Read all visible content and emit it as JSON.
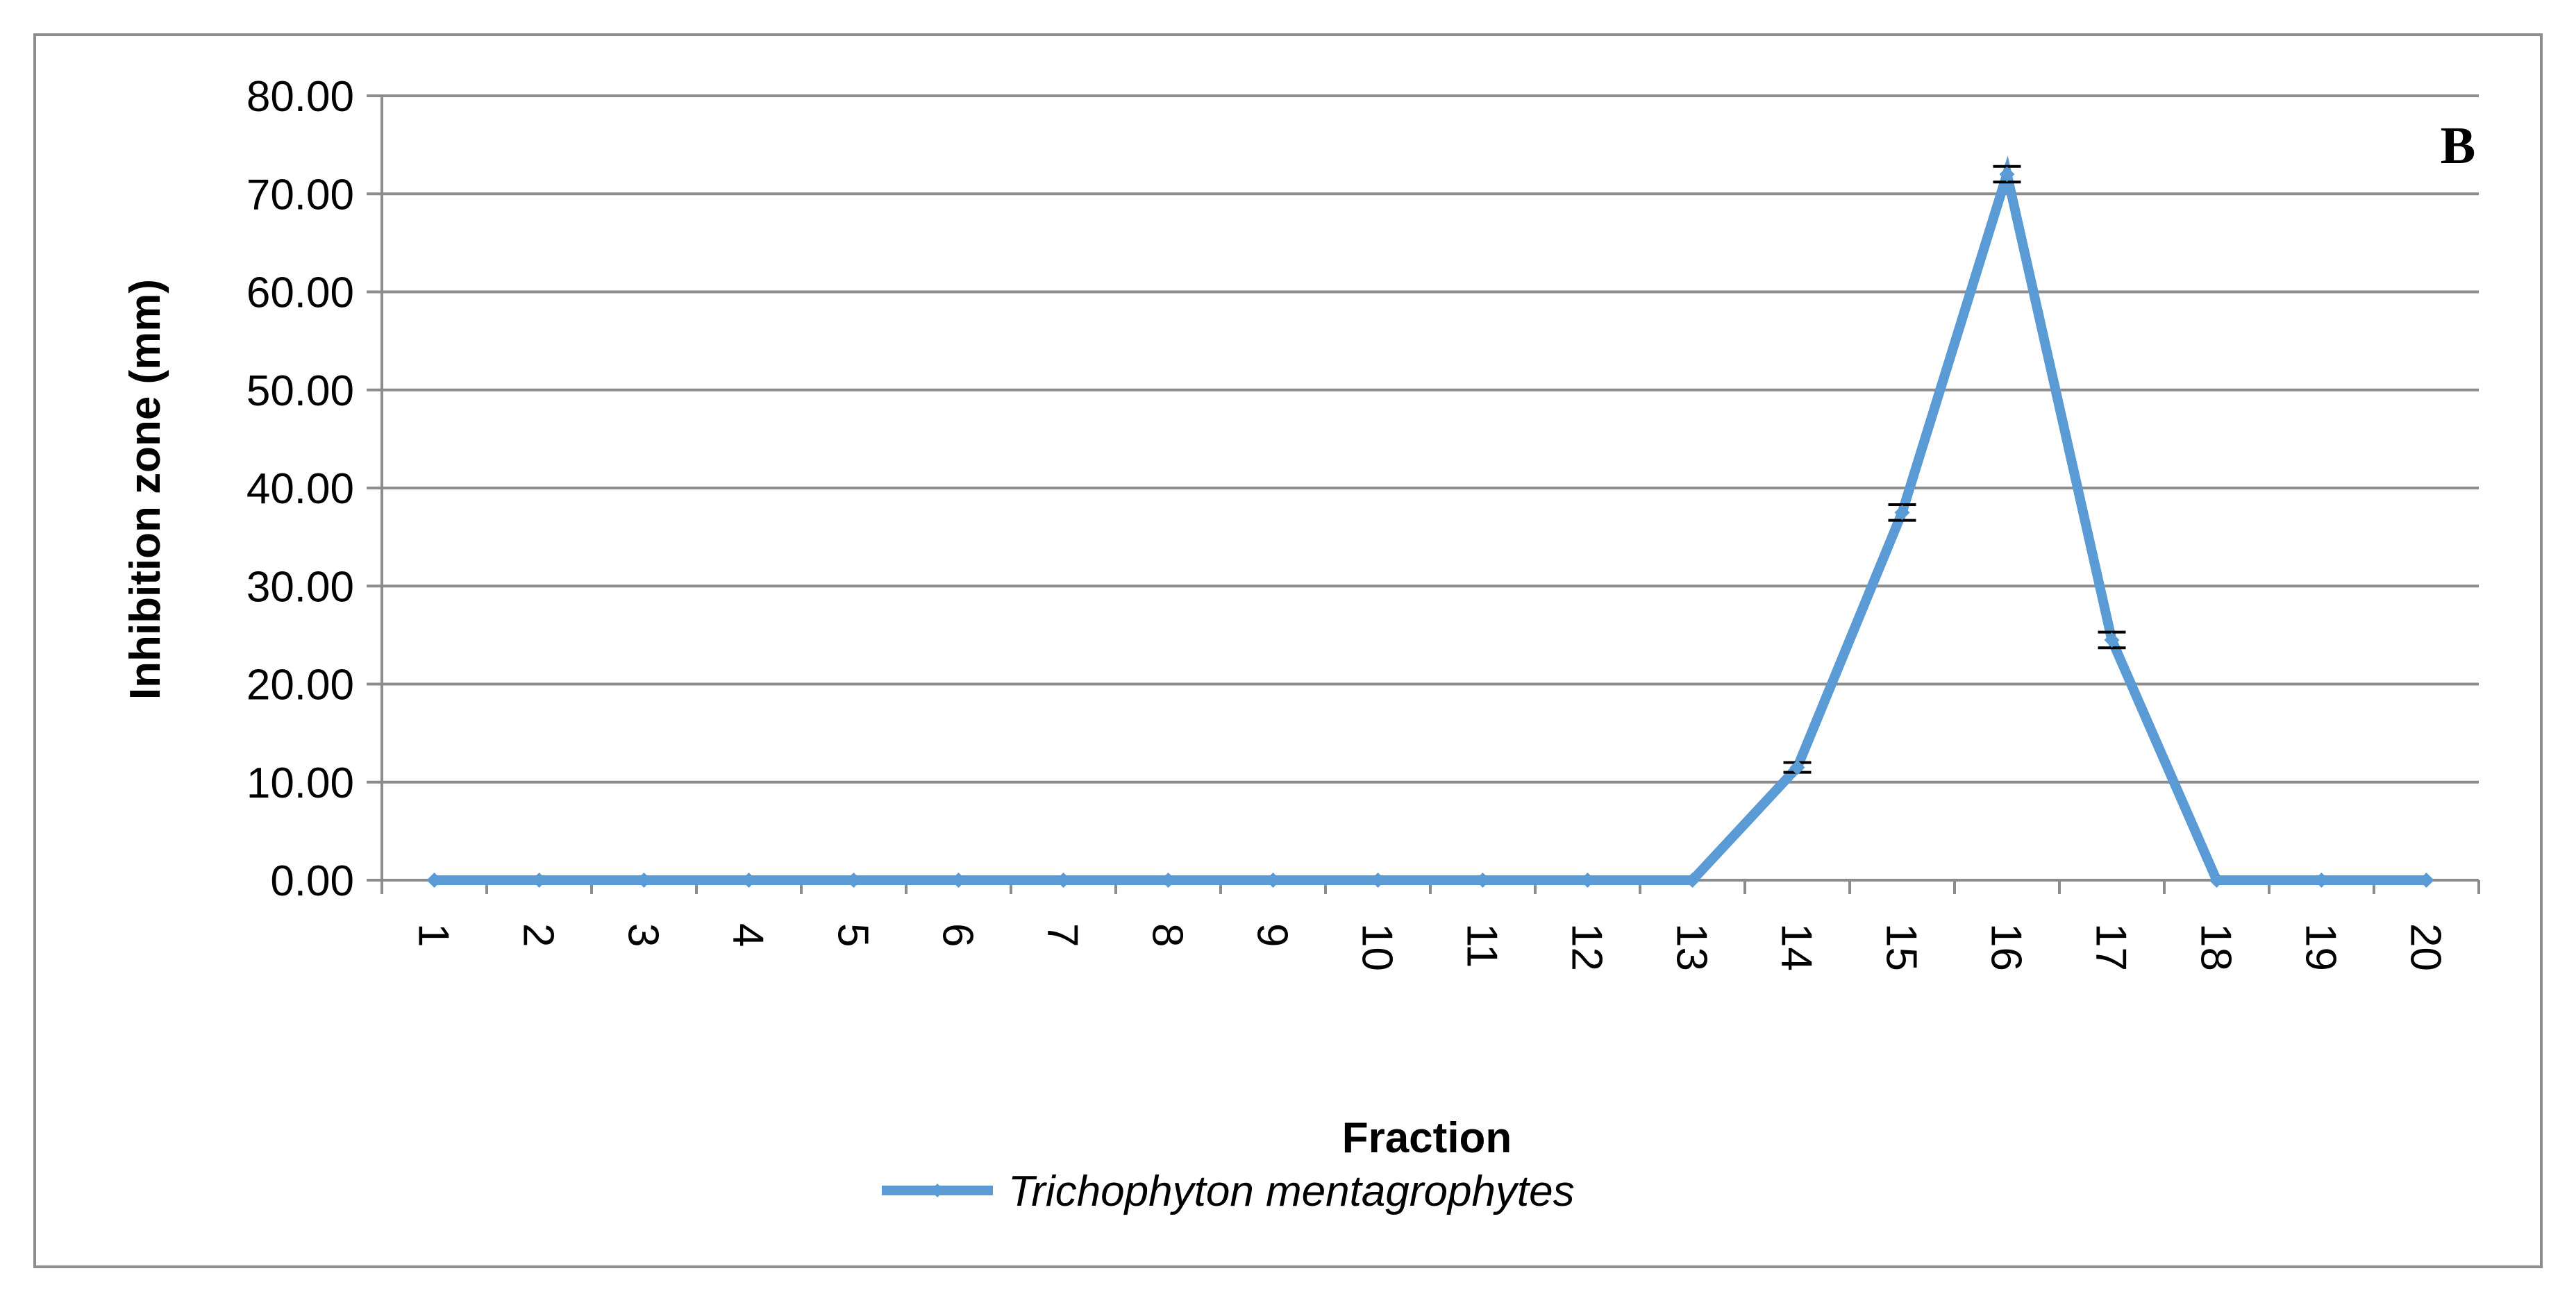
{
  "chart_data": {
    "type": "line",
    "panel_label": "B",
    "xlabel": "Fraction",
    "ylabel": "Inhibition zone (mm)",
    "categories": [
      "1",
      "2",
      "3",
      "4",
      "5",
      "6",
      "7",
      "8",
      "9",
      "10",
      "11",
      "12",
      "13",
      "14",
      "15",
      "16",
      "17",
      "18",
      "19",
      "20"
    ],
    "ylim": [
      0,
      80
    ],
    "yticks": [
      "0.00",
      "10.00",
      "20.00",
      "30.00",
      "40.00",
      "50.00",
      "60.00",
      "70.00",
      "80.00"
    ],
    "grid": true,
    "legend_position": "bottom",
    "series": [
      {
        "name": "Trichophyton mentagrophytes",
        "color": "#5b9bd5",
        "values": [
          0,
          0,
          0,
          0,
          0,
          0,
          0,
          0,
          0,
          0,
          0,
          0,
          0,
          11.5,
          37.5,
          72.0,
          24.5,
          0,
          0,
          0
        ],
        "errors": [
          0,
          0,
          0,
          0,
          0,
          0,
          0,
          0,
          0,
          0,
          0,
          0,
          0,
          0.5,
          0.8,
          0.8,
          0.8,
          0,
          0,
          0
        ]
      }
    ]
  }
}
